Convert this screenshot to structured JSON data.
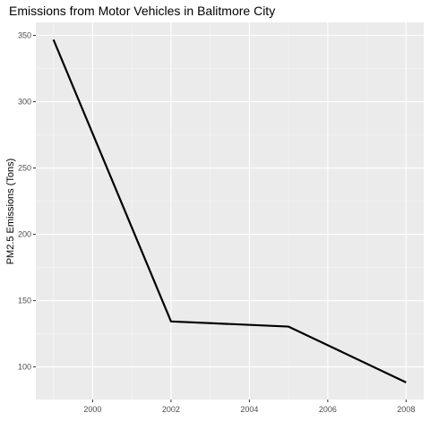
{
  "chart_data": {
    "type": "line",
    "title": "Emissions from Motor Vehicles in Balitmore City",
    "xlabel": "",
    "ylabel": "PM2.5 Emissions (Tons)",
    "x": [
      1999,
      2002,
      2005,
      2008
    ],
    "series": [
      {
        "values": [
          346.8,
          134.3,
          130.4,
          88.3
        ]
      }
    ],
    "xlim": [
      1998.55,
      2008.45
    ],
    "ylim": [
      75.4,
      359.8
    ],
    "xticks": [
      2000,
      2002,
      2004,
      2006,
      2008
    ],
    "yticks": [
      100,
      150,
      200,
      250,
      300,
      350
    ],
    "grid": true,
    "legend": "none",
    "colors": {
      "panel": "#ebebeb",
      "grid_major": "#ffffff",
      "line": "#000000"
    }
  }
}
